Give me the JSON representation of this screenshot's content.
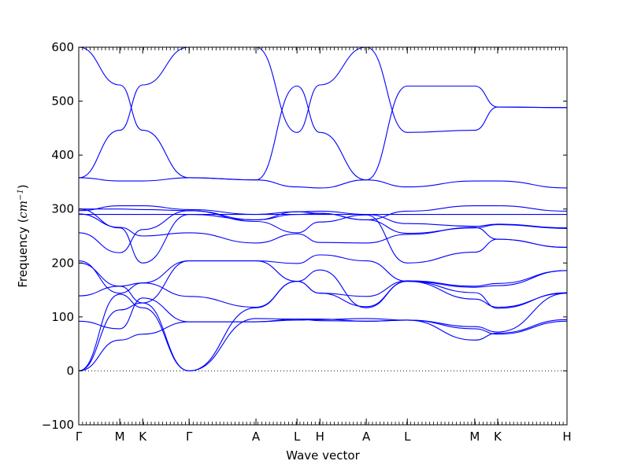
{
  "chart_data": {
    "type": "line",
    "title": "",
    "xlabel": "Wave vector",
    "ylabel_text": "Frequency (",
    "ylabel_unit": "cm",
    "ylabel_exp": "−1",
    "ylabel_close": ")",
    "ylim": [
      -100,
      600
    ],
    "yticks": [
      -100,
      0,
      100,
      200,
      300,
      400,
      500,
      600
    ],
    "ytick_labels": [
      "−100",
      "0",
      "100",
      "200",
      "300",
      "400",
      "500",
      "600"
    ],
    "xlim": [
      0,
      1
    ],
    "k_points": [
      {
        "label": "Γ",
        "x": 0.0
      },
      {
        "label": "M",
        "x": 0.084
      },
      {
        "label": "K",
        "x": 0.131
      },
      {
        "label": "Γ",
        "x": 0.226
      },
      {
        "label": "A",
        "x": 0.363
      },
      {
        "label": "L",
        "x": 0.447
      },
      {
        "label": "H",
        "x": 0.494
      },
      {
        "label": "A",
        "x": 0.589
      },
      {
        "label": "L",
        "x": 0.673
      },
      {
        "label": "M",
        "x": 0.811
      },
      {
        "label": "K",
        "x": 0.858
      },
      {
        "label": "H",
        "x": 1.0
      }
    ],
    "zero_line": 0,
    "line_color": "#0000ff",
    "series": [
      {
        "points": [
          [
            0.0,
            0
          ],
          [
            0.084,
            57
          ],
          [
            0.131,
            68
          ],
          [
            0.226,
            91
          ],
          [
            0.363,
            91
          ],
          [
            0.447,
            94
          ],
          [
            0.494,
            95
          ],
          [
            0.589,
            97
          ],
          [
            0.673,
            94
          ],
          [
            0.811,
            78
          ],
          [
            0.858,
            68
          ],
          [
            1.0,
            92
          ]
        ]
      },
      {
        "points": [
          [
            0.0,
            0
          ],
          [
            0.084,
            113
          ],
          [
            0.131,
            126
          ],
          [
            0.226,
            0
          ],
          [
            0.363,
            97
          ],
          [
            0.447,
            96
          ],
          [
            0.494,
            93
          ],
          [
            0.589,
            92
          ],
          [
            0.673,
            94
          ],
          [
            0.811,
            57
          ],
          [
            0.858,
            70
          ],
          [
            1.0,
            95
          ]
        ]
      },
      {
        "points": [
          [
            0.0,
            0
          ],
          [
            0.084,
            142
          ],
          [
            0.131,
            117
          ],
          [
            0.226,
            0
          ],
          [
            0.363,
            117
          ],
          [
            0.447,
            166
          ],
          [
            0.494,
            187
          ],
          [
            0.589,
            117
          ],
          [
            0.673,
            166
          ],
          [
            0.811,
            133
          ],
          [
            0.858,
            118
          ],
          [
            1.0,
            144
          ]
        ]
      },
      {
        "points": [
          [
            0.0,
            92
          ],
          [
            0.084,
            78
          ],
          [
            0.131,
            135
          ],
          [
            0.226,
            91
          ],
          [
            0.363,
            91
          ],
          [
            0.447,
            96
          ],
          [
            0.494,
            96
          ],
          [
            0.589,
            92
          ],
          [
            0.673,
            94
          ],
          [
            0.811,
            82
          ],
          [
            0.858,
            72
          ],
          [
            1.0,
            144
          ]
        ]
      },
      {
        "points": [
          [
            0.0,
            139
          ],
          [
            0.084,
            157
          ],
          [
            0.131,
            163
          ],
          [
            0.226,
            138
          ],
          [
            0.363,
            118
          ],
          [
            0.447,
            166
          ],
          [
            0.494,
            144
          ],
          [
            0.589,
            119
          ],
          [
            0.673,
            166
          ],
          [
            0.811,
            145
          ],
          [
            0.858,
            116
          ],
          [
            1.0,
            145
          ]
        ]
      },
      {
        "points": [
          [
            0.0,
            204
          ],
          [
            0.084,
            144
          ],
          [
            0.131,
            163
          ],
          [
            0.226,
            204
          ],
          [
            0.363,
            204
          ],
          [
            0.447,
            166
          ],
          [
            0.494,
            144
          ],
          [
            0.589,
            138
          ],
          [
            0.673,
            167
          ],
          [
            0.811,
            157
          ],
          [
            0.858,
            162
          ],
          [
            1.0,
            186
          ]
        ]
      },
      {
        "points": [
          [
            0.0,
            200
          ],
          [
            0.084,
            157
          ],
          [
            0.131,
            126
          ],
          [
            0.226,
            204
          ],
          [
            0.363,
            204
          ],
          [
            0.447,
            199
          ],
          [
            0.494,
            215
          ],
          [
            0.589,
            204
          ],
          [
            0.673,
            166
          ],
          [
            0.811,
            155
          ],
          [
            0.858,
            158
          ],
          [
            1.0,
            186
          ]
        ]
      },
      {
        "points": [
          [
            0.0,
            256
          ],
          [
            0.084,
            219
          ],
          [
            0.131,
            262
          ],
          [
            0.226,
            297
          ],
          [
            0.363,
            277
          ],
          [
            0.447,
            256
          ],
          [
            0.494,
            276
          ],
          [
            0.589,
            289
          ],
          [
            0.673,
            200
          ],
          [
            0.811,
            220
          ],
          [
            0.858,
            244
          ],
          [
            1.0,
            229
          ]
        ]
      },
      {
        "points": [
          [
            0.0,
            291
          ],
          [
            0.084,
            266
          ],
          [
            0.131,
            250
          ],
          [
            0.226,
            256
          ],
          [
            0.363,
            237
          ],
          [
            0.447,
            254
          ],
          [
            0.494,
            238
          ],
          [
            0.589,
            237
          ],
          [
            0.673,
            253
          ],
          [
            0.811,
            266
          ],
          [
            0.858,
            244
          ],
          [
            1.0,
            229
          ]
        ]
      },
      {
        "points": [
          [
            0.0,
            300
          ],
          [
            0.084,
            265
          ],
          [
            0.131,
            200
          ],
          [
            0.226,
            290
          ],
          [
            0.363,
            280
          ],
          [
            0.447,
            290
          ],
          [
            0.494,
            292
          ],
          [
            0.589,
            280
          ],
          [
            0.673,
            255
          ],
          [
            0.811,
            265
          ],
          [
            0.858,
            271
          ],
          [
            1.0,
            264
          ]
        ]
      },
      {
        "points": [
          [
            0.0,
            297
          ],
          [
            0.084,
            306
          ],
          [
            0.131,
            306
          ],
          [
            0.226,
            299
          ],
          [
            0.363,
            290
          ],
          [
            0.447,
            295
          ],
          [
            0.494,
            296
          ],
          [
            0.589,
            290
          ],
          [
            0.673,
            273
          ],
          [
            0.811,
            268
          ],
          [
            0.858,
            272
          ],
          [
            1.0,
            265
          ]
        ]
      },
      {
        "points": [
          [
            0.0,
            290
          ],
          [
            0.084,
            290
          ],
          [
            0.131,
            290
          ],
          [
            0.226,
            290
          ],
          [
            0.363,
            290
          ],
          [
            0.447,
            290
          ],
          [
            0.494,
            290
          ],
          [
            0.589,
            290
          ],
          [
            0.673,
            290
          ],
          [
            0.811,
            290
          ],
          [
            0.858,
            290
          ],
          [
            1.0,
            290
          ]
        ]
      },
      {
        "points": [
          [
            0.0,
            300
          ],
          [
            0.084,
            300
          ],
          [
            0.131,
            299
          ],
          [
            0.226,
            297
          ],
          [
            0.363,
            280
          ],
          [
            0.447,
            295
          ],
          [
            0.494,
            292
          ],
          [
            0.589,
            280
          ],
          [
            0.673,
            296
          ],
          [
            0.811,
            306
          ],
          [
            0.858,
            306
          ],
          [
            1.0,
            296
          ]
        ]
      },
      {
        "points": [
          [
            0.0,
            358
          ],
          [
            0.084,
            352
          ],
          [
            0.131,
            352
          ],
          [
            0.226,
            358
          ],
          [
            0.363,
            354
          ],
          [
            0.447,
            341
          ],
          [
            0.494,
            339
          ],
          [
            0.589,
            354
          ],
          [
            0.673,
            341
          ],
          [
            0.811,
            352
          ],
          [
            0.858,
            352
          ],
          [
            1.0,
            339
          ]
        ]
      },
      {
        "points": [
          [
            0.0,
            358
          ],
          [
            0.084,
            446
          ],
          [
            0.131,
            530
          ],
          [
            0.226,
            600
          ],
          [
            0.363,
            600
          ],
          [
            0.447,
            442
          ],
          [
            0.494,
            530
          ],
          [
            0.589,
            600
          ],
          [
            0.673,
            442
          ],
          [
            0.811,
            446
          ],
          [
            0.858,
            489
          ],
          [
            1.0,
            488
          ]
        ]
      },
      {
        "points": [
          [
            0.0,
            600
          ],
          [
            0.084,
            530
          ],
          [
            0.131,
            446
          ],
          [
            0.226,
            358
          ],
          [
            0.363,
            354
          ],
          [
            0.447,
            528
          ],
          [
            0.494,
            442
          ],
          [
            0.589,
            354
          ],
          [
            0.673,
            528
          ],
          [
            0.811,
            528
          ],
          [
            0.858,
            489
          ],
          [
            1.0,
            488
          ]
        ]
      }
    ]
  }
}
